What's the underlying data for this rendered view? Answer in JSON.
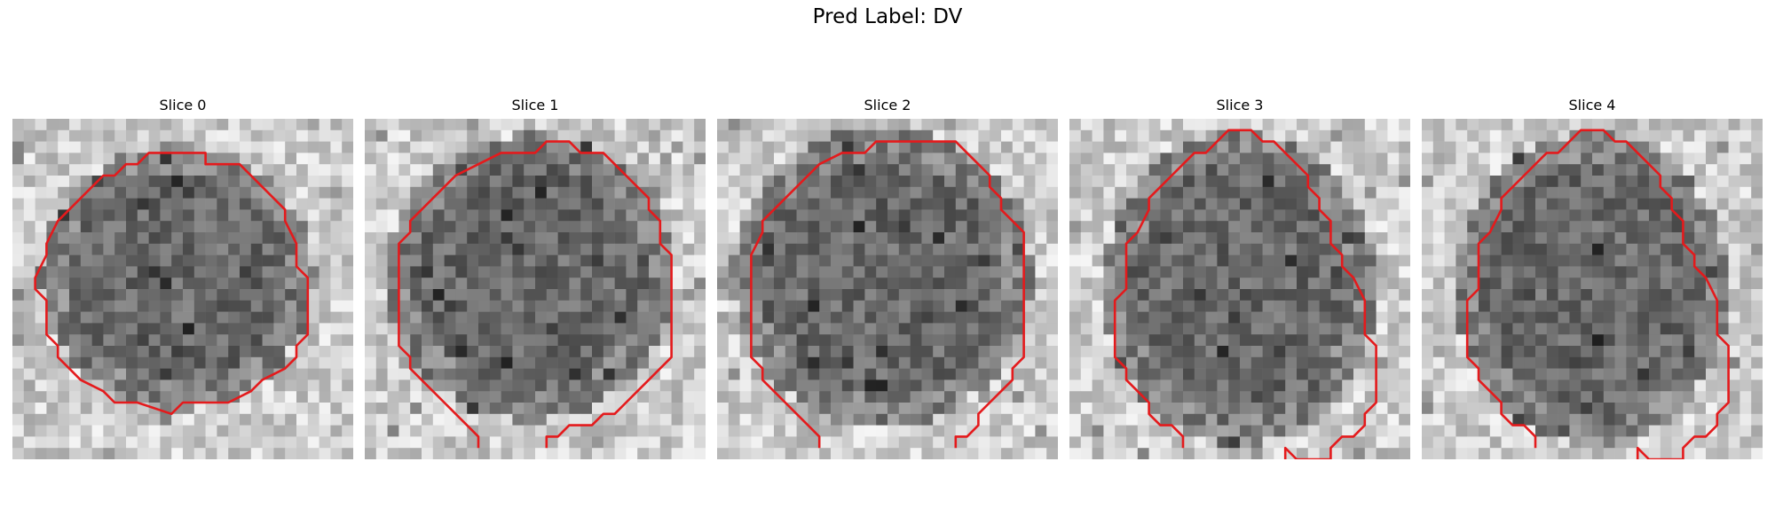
{
  "figure": {
    "title": "Pred Label: DV"
  },
  "colors": {
    "contour": "#e41a1c",
    "background": "#ffffff"
  },
  "slices": [
    {
      "title": "Slice 0",
      "seed": 11,
      "variant": "closed"
    },
    {
      "title": "Slice 1",
      "seed": 23,
      "variant": "open-bottom"
    },
    {
      "title": "Slice 2",
      "seed": 37,
      "variant": "open-bottom-wide"
    },
    {
      "title": "Slice 3",
      "seed": 41,
      "variant": "tall"
    },
    {
      "title": "Slice 4",
      "seed": 53,
      "variant": "tall"
    }
  ]
}
